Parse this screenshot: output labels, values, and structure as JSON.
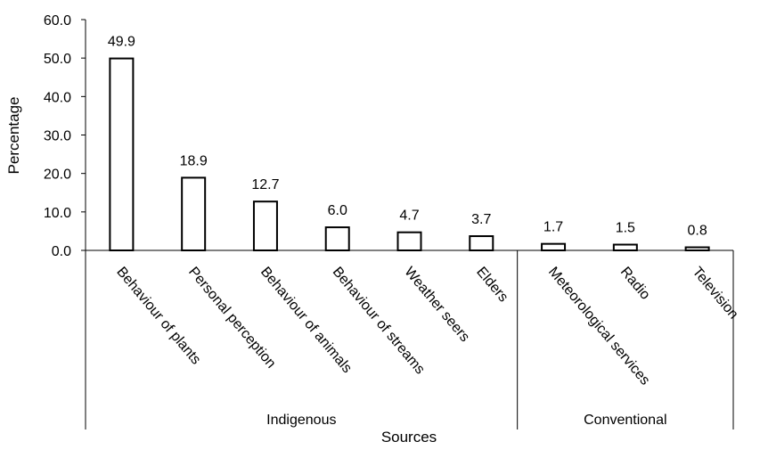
{
  "chart_data": {
    "type": "bar",
    "ylabel": "Percentage",
    "xlabel": "Sources",
    "ylim": [
      0,
      60
    ],
    "yticks": [
      "0.0",
      "10.0",
      "20.0",
      "30.0",
      "40.0",
      "50.0",
      "60.0"
    ],
    "grid": false,
    "categories": [
      "Behaviour of plants",
      "Personal perception",
      "Behaviour of animals",
      "Behaviour of streams",
      "Weather seers",
      "Elders",
      "Meteorological services",
      "Radio",
      "Television"
    ],
    "values": [
      49.9,
      18.9,
      12.7,
      6.0,
      4.7,
      3.7,
      1.7,
      1.5,
      0.8
    ],
    "data_labels": [
      "49.9",
      "18.9",
      "12.7",
      "6.0",
      "4.7",
      "3.7",
      "1.7",
      "1.5",
      "0.8"
    ],
    "groups": [
      {
        "label": "Indigenous",
        "count": 6
      },
      {
        "label": "Conventional",
        "count": 3
      }
    ],
    "bar_fill": "#ffffff",
    "bar_stroke": "#000000"
  }
}
